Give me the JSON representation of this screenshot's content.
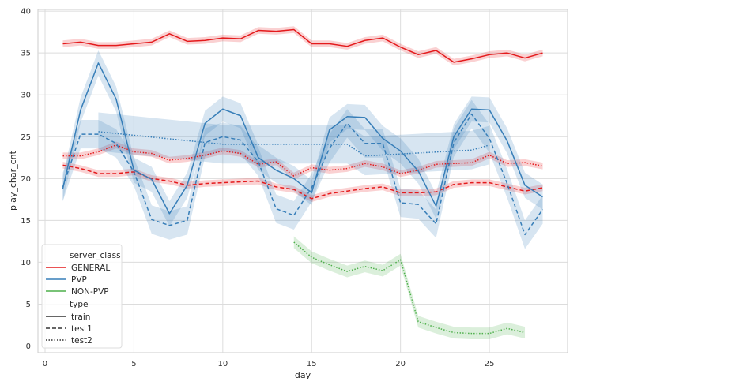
{
  "chart_data": {
    "type": "line",
    "title": "",
    "xlabel": "day",
    "ylabel": "play_char_cnt",
    "xlim": [
      -0.4,
      29.4
    ],
    "ylim": [
      -0.8,
      40.2
    ],
    "xticks": [
      0,
      5,
      10,
      15,
      20,
      25
    ],
    "yticks": [
      0,
      5,
      10,
      15,
      20,
      25,
      30,
      35,
      40
    ],
    "grid": true,
    "legend_position": "lower-left",
    "legend": {
      "hue_title": "server_class",
      "hue_entries": [
        {
          "label": "GENERAL",
          "color": "#e41a1c"
        },
        {
          "label": "PVP",
          "color": "#377eb8"
        },
        {
          "label": "NON-PVP",
          "color": "#4daf4a"
        }
      ],
      "style_title": "type",
      "style_entries": [
        {
          "label": "train",
          "dash": "solid"
        },
        {
          "label": "test1",
          "dash": "dashed"
        },
        {
          "label": "test2",
          "dash": "dotted"
        }
      ]
    },
    "series": [
      {
        "name": "GENERAL train",
        "color": "#e41a1c",
        "dash": "solid",
        "x": [
          1,
          2,
          3,
          4,
          5,
          6,
          7,
          8,
          9,
          10,
          11,
          12,
          13,
          14,
          15,
          16,
          17,
          18,
          19,
          20,
          21,
          22,
          23,
          24,
          25,
          26,
          27,
          28
        ],
        "y": [
          36.1,
          36.3,
          35.9,
          35.9,
          36.1,
          36.3,
          37.3,
          36.4,
          36.5,
          36.8,
          36.7,
          37.7,
          37.6,
          37.8,
          36.1,
          36.1,
          35.8,
          36.5,
          36.8,
          35.7,
          34.8,
          35.3,
          33.9,
          34.3,
          34.8,
          35.0,
          34.4,
          35.0
        ],
        "band": 0.4
      },
      {
        "name": "GENERAL test1",
        "color": "#e41a1c",
        "dash": "dashed",
        "x": [
          1,
          2,
          3,
          4,
          5,
          6,
          7,
          8,
          9,
          10,
          11,
          12,
          13,
          14,
          15,
          16,
          17,
          18,
          19,
          20,
          21,
          22,
          23,
          24,
          25,
          26,
          27,
          28
        ],
        "y": [
          21.6,
          21.2,
          20.6,
          20.6,
          20.8,
          20.0,
          19.7,
          19.2,
          19.4,
          19.5,
          19.6,
          19.7,
          19.0,
          18.7,
          17.6,
          18.2,
          18.5,
          18.8,
          19.0,
          18.3,
          18.3,
          18.4,
          19.3,
          19.5,
          19.5,
          19.0,
          18.5,
          18.9
        ],
        "band": 0.4
      },
      {
        "name": "GENERAL test2",
        "color": "#e41a1c",
        "dash": "dotted",
        "x": [
          1,
          2,
          3,
          4,
          5,
          6,
          7,
          8,
          9,
          10,
          11,
          12,
          13,
          14,
          15,
          16,
          17,
          18,
          19,
          20,
          21,
          22,
          23,
          24,
          25,
          26,
          27,
          28
        ],
        "y": [
          22.7,
          22.7,
          23.2,
          24.0,
          23.2,
          23.0,
          22.2,
          22.4,
          22.8,
          23.3,
          23.0,
          21.7,
          22.0,
          20.3,
          21.3,
          21.0,
          21.2,
          21.8,
          21.4,
          20.6,
          21.0,
          21.7,
          21.8,
          21.9,
          22.8,
          21.8,
          21.9,
          21.5
        ],
        "band": 0.4
      },
      {
        "name": "PVP train",
        "color": "#377eb8",
        "dash": "solid",
        "x": [
          1,
          2,
          3,
          4,
          5,
          6,
          7,
          8,
          9,
          10,
          11,
          12,
          13,
          14,
          15,
          16,
          17,
          18,
          19,
          20,
          21,
          22,
          23,
          24,
          25,
          26,
          27,
          28
        ],
        "y": [
          18.8,
          28.2,
          33.8,
          29.5,
          21.0,
          19.9,
          15.8,
          19.2,
          26.6,
          28.3,
          27.5,
          22.5,
          21.0,
          20.0,
          18.3,
          25.8,
          27.4,
          27.3,
          24.8,
          23.3,
          20.9,
          16.7,
          25.0,
          28.3,
          28.2,
          24.5,
          19.2,
          17.8
        ],
        "band": 1.5
      },
      {
        "name": "PVP test1",
        "color": "#377eb8",
        "dash": "dashed",
        "x": [
          1,
          2,
          3,
          4,
          5,
          6,
          7,
          8,
          9,
          10,
          11,
          12,
          13,
          14,
          15,
          16,
          17,
          18,
          19,
          20,
          21,
          22,
          23,
          24,
          25,
          26,
          27,
          28
        ],
        "y": [
          19.0,
          25.3,
          25.3,
          24.2,
          20.8,
          15.1,
          14.4,
          15.0,
          24.3,
          25.0,
          24.6,
          22.0,
          16.4,
          15.6,
          18.9,
          23.6,
          26.6,
          24.2,
          24.2,
          17.1,
          16.9,
          14.6,
          24.3,
          27.7,
          24.8,
          19.4,
          13.3,
          16.3
        ],
        "band": 1.7
      },
      {
        "name": "PVP test2",
        "color": "#377eb8",
        "dash": "dotted",
        "x": [
          3,
          10,
          17,
          18,
          24,
          25
        ],
        "y": [
          25.6,
          24.1,
          24.1,
          22.7,
          23.4,
          24.0
        ],
        "band": 2.3
      },
      {
        "name": "NON-PVP test2",
        "color": "#4daf4a",
        "dash": "dotted",
        "x": [
          14,
          15,
          16,
          17,
          18,
          19,
          20,
          21,
          22,
          23,
          24,
          25,
          26,
          27
        ],
        "y": [
          12.4,
          10.6,
          9.7,
          8.9,
          9.5,
          9.0,
          10.3,
          2.9,
          2.2,
          1.6,
          1.5,
          1.5,
          2.1,
          1.6
        ],
        "band": 0.7
      }
    ]
  }
}
